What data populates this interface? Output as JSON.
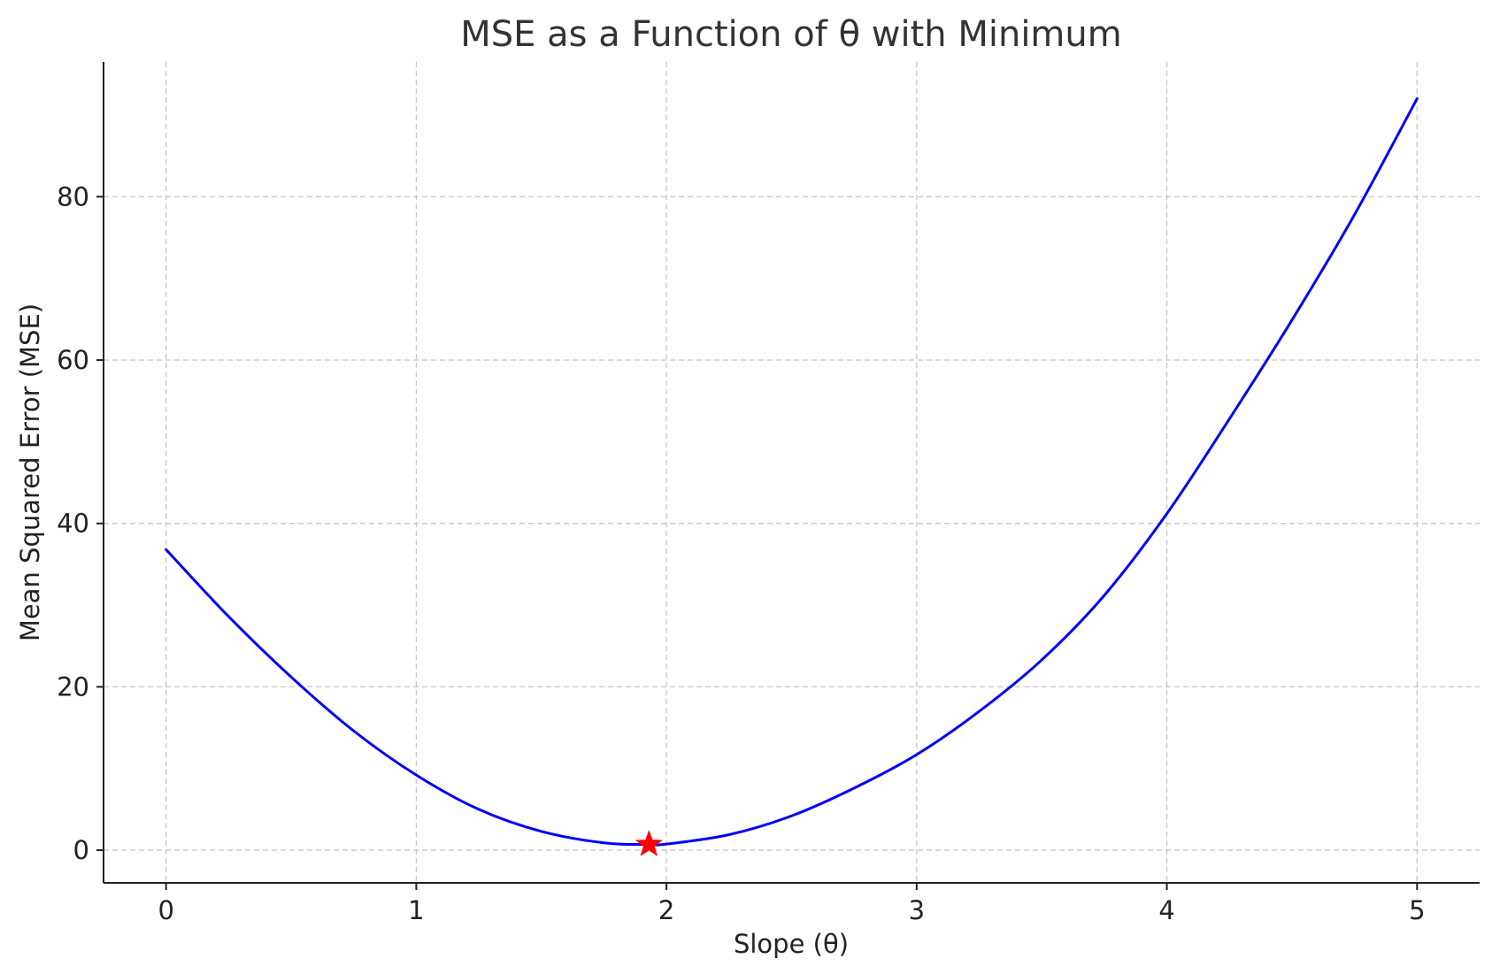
{
  "chart_data": {
    "type": "line",
    "title": "MSE as a Function of θ with Minimum",
    "xlabel": "Slope (θ)",
    "ylabel": "Mean Squared Error (MSE)",
    "xlim": [
      -0.25,
      5.25
    ],
    "ylim": [
      -4,
      96.5
    ],
    "xticks": [
      0,
      1,
      2,
      3,
      4,
      5
    ],
    "yticks": [
      0,
      20,
      40,
      60,
      80
    ],
    "grid": true,
    "series": [
      {
        "color": "#0000ff",
        "x": [
          0,
          0.25,
          0.5,
          0.75,
          1,
          1.25,
          1.5,
          1.75,
          1.93,
          2.0,
          2.25,
          2.5,
          2.75,
          3,
          3.25,
          3.5,
          3.75,
          4,
          4.25,
          4.5,
          4.75,
          5
        ],
        "y": [
          36.8,
          28.6,
          21.2,
          14.6,
          9.2,
          5.0,
          2.3,
          0.9,
          0.7,
          0.75,
          1.9,
          4.2,
          7.6,
          11.7,
          17.0,
          23.3,
          31.2,
          41.2,
          52.8,
          64.9,
          77.8,
          92.0
        ]
      }
    ],
    "marker": {
      "shape": "star",
      "color": "#ff0000",
      "x": 1.93,
      "y": 0.7
    }
  }
}
